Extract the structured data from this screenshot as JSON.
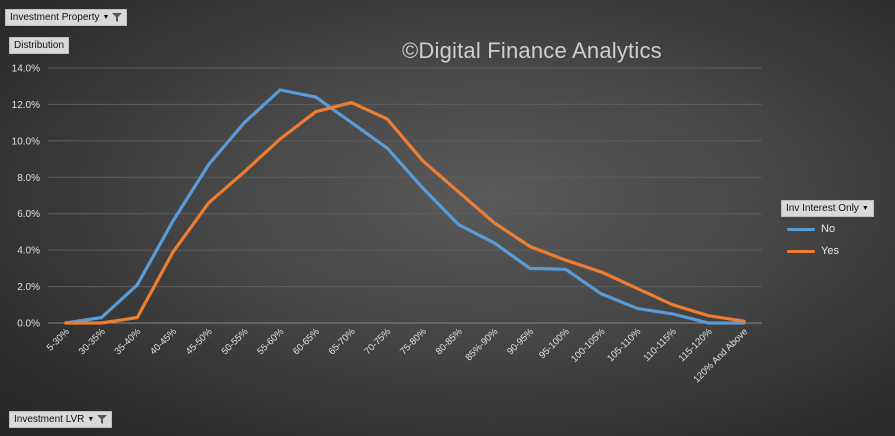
{
  "filter_button": {
    "label": "Investment Property"
  },
  "values_button": {
    "label": "Distribution"
  },
  "axis_button": {
    "label": "Investment LVR"
  },
  "watermark": "©Digital Finance Analytics",
  "legend": {
    "title": "Inv Interest Only",
    "items": [
      {
        "label": "No",
        "color": "#5b9bd5"
      },
      {
        "label": "Yes",
        "color": "#ed7d31"
      }
    ]
  },
  "chart_data": {
    "type": "line",
    "categories": [
      "5-30%",
      "30-35%",
      "35-40%",
      "40-45%",
      "45-50%",
      "50-55%",
      "55-60%",
      "60-65%",
      "65-70%",
      "70-75%",
      "75-80%",
      "80-85%",
      "85%-90%",
      "90-95%",
      "95-100%",
      "100-105%",
      "105-110%",
      "110-115%",
      "115-120%",
      "120% And Above"
    ],
    "series": [
      {
        "name": "No",
        "color": "#5b9bd5",
        "values": [
          0.0,
          0.3,
          2.1,
          5.6,
          8.7,
          11.0,
          12.8,
          12.4,
          11.0,
          9.6,
          7.4,
          5.4,
          4.4,
          3.0,
          2.95,
          1.6,
          0.8,
          0.5,
          0.0,
          0.0
        ]
      },
      {
        "name": "Yes",
        "color": "#ed7d31",
        "values": [
          0.0,
          0.0,
          0.3,
          3.9,
          6.6,
          8.3,
          10.1,
          11.6,
          12.1,
          11.2,
          8.9,
          7.2,
          5.5,
          4.2,
          3.45,
          2.8,
          1.9,
          1.0,
          0.4,
          0.1
        ]
      }
    ],
    "ylim": [
      0,
      14
    ],
    "yticks": [
      "0.0%",
      "2.0%",
      "4.0%",
      "6.0%",
      "8.0%",
      "10.0%",
      "12.0%",
      "14.0%"
    ],
    "grid": true,
    "legend_position": "right"
  }
}
